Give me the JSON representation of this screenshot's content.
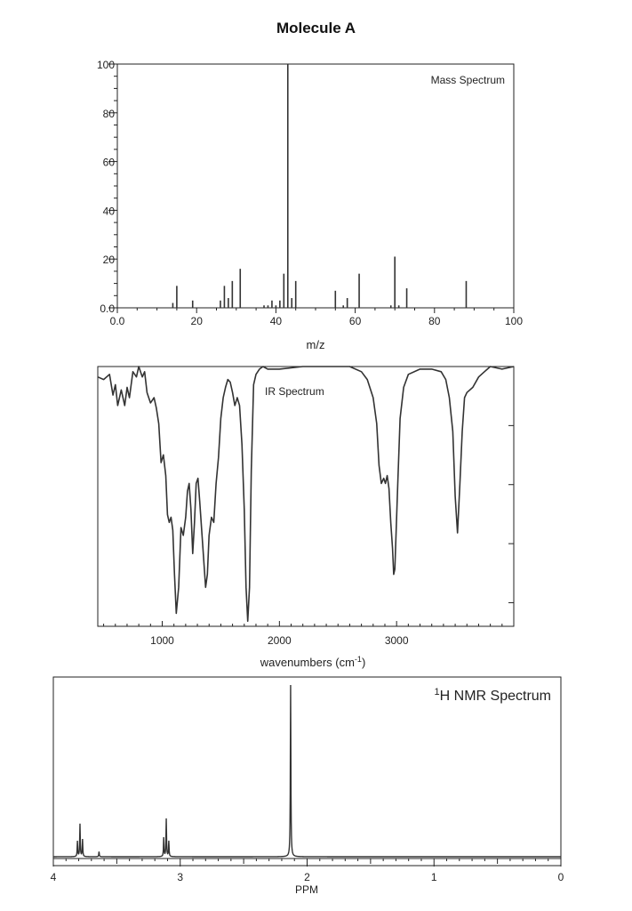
{
  "page": {
    "title": "Molecule A"
  },
  "chart_data": [
    {
      "type": "bar",
      "subtype": "stick-spectrum",
      "inset_label": "Mass Spectrum",
      "xlabel": "m/z",
      "ylabel": "",
      "xlim": [
        0,
        100
      ],
      "ylim": [
        0,
        100
      ],
      "xticks": [
        "0.0",
        "20",
        "40",
        "60",
        "80",
        "100"
      ],
      "yticks": [
        "0.0",
        "20",
        "40",
        "60",
        "80",
        "100"
      ],
      "peaks": [
        {
          "mz": 14,
          "intensity": 2
        },
        {
          "mz": 15,
          "intensity": 9
        },
        {
          "mz": 19,
          "intensity": 3
        },
        {
          "mz": 26,
          "intensity": 3
        },
        {
          "mz": 27,
          "intensity": 9
        },
        {
          "mz": 28,
          "intensity": 4
        },
        {
          "mz": 29,
          "intensity": 11
        },
        {
          "mz": 31,
          "intensity": 16
        },
        {
          "mz": 37,
          "intensity": 1
        },
        {
          "mz": 38,
          "intensity": 1
        },
        {
          "mz": 39,
          "intensity": 3
        },
        {
          "mz": 40,
          "intensity": 1
        },
        {
          "mz": 41,
          "intensity": 3
        },
        {
          "mz": 42,
          "intensity": 14
        },
        {
          "mz": 43,
          "intensity": 100
        },
        {
          "mz": 44,
          "intensity": 4
        },
        {
          "mz": 45,
          "intensity": 11
        },
        {
          "mz": 55,
          "intensity": 7
        },
        {
          "mz": 57,
          "intensity": 1
        },
        {
          "mz": 58,
          "intensity": 4
        },
        {
          "mz": 61,
          "intensity": 14
        },
        {
          "mz": 69,
          "intensity": 1
        },
        {
          "mz": 70,
          "intensity": 21
        },
        {
          "mz": 71,
          "intensity": 1
        },
        {
          "mz": 73,
          "intensity": 8
        },
        {
          "mz": 88,
          "intensity": 11
        }
      ]
    },
    {
      "type": "line",
      "inset_label": "IR Spectrum",
      "xlabel_main": "wavenumbers (cm",
      "xlabel_sup": "-1",
      "xlabel_end": ")",
      "xlim": [
        450,
        4000
      ],
      "ylim": [
        0,
        100
      ],
      "xticks": [
        "1000",
        "2000",
        "3000"
      ],
      "xtick_values": [
        1000,
        2000,
        3000
      ],
      "x": [
        450,
        500,
        550,
        580,
        600,
        620,
        650,
        680,
        700,
        720,
        750,
        780,
        800,
        830,
        850,
        870,
        900,
        930,
        950,
        970,
        990,
        1010,
        1030,
        1045,
        1060,
        1075,
        1090,
        1105,
        1120,
        1140,
        1160,
        1180,
        1200,
        1215,
        1230,
        1245,
        1260,
        1275,
        1290,
        1305,
        1320,
        1340,
        1355,
        1370,
        1385,
        1400,
        1420,
        1440,
        1460,
        1480,
        1500,
        1520,
        1540,
        1560,
        1580,
        1600,
        1620,
        1640,
        1660,
        1680,
        1700,
        1715,
        1730,
        1745,
        1760,
        1780,
        1800,
        1830,
        1860,
        1900,
        2000,
        2200,
        2400,
        2600,
        2700,
        2750,
        2800,
        2830,
        2850,
        2870,
        2890,
        2905,
        2920,
        2935,
        2950,
        2965,
        2975,
        2985,
        2995,
        3010,
        3030,
        3060,
        3100,
        3200,
        3300,
        3380,
        3420,
        3450,
        3480,
        3500,
        3520,
        3540,
        3560,
        3580,
        3600,
        3650,
        3700,
        3750,
        3800,
        3900,
        4000
      ],
      "y": [
        96,
        95,
        97,
        89,
        93,
        85,
        91,
        85,
        92,
        88,
        98,
        96,
        100,
        96,
        98,
        90,
        86,
        88,
        84,
        78,
        63,
        66,
        58,
        43,
        40,
        42,
        37,
        20,
        5,
        15,
        38,
        35,
        42,
        52,
        55,
        45,
        28,
        40,
        55,
        57,
        48,
        35,
        25,
        15,
        20,
        35,
        42,
        40,
        55,
        65,
        80,
        88,
        92,
        95,
        94,
        90,
        85,
        88,
        85,
        70,
        45,
        15,
        2,
        15,
        60,
        93,
        97,
        99,
        100,
        99,
        99,
        100,
        100,
        100,
        98,
        95,
        88,
        78,
        62,
        55,
        57,
        55,
        58,
        53,
        40,
        30,
        20,
        22,
        35,
        55,
        80,
        92,
        97,
        99,
        99,
        98,
        95,
        88,
        75,
        50,
        36,
        55,
        75,
        88,
        90,
        92,
        96,
        98,
        100,
        99,
        100
      ]
    },
    {
      "type": "line",
      "inset_label_sup": "1",
      "inset_label_main": "H NMR Spectrum",
      "xlabel": "PPM",
      "xlim": [
        4,
        0
      ],
      "xticks": [
        "4",
        "3",
        "2",
        "1",
        "0"
      ],
      "xtick_values": [
        4,
        3,
        2,
        1,
        0
      ],
      "peaks": [
        {
          "ppm": 3.81,
          "height": 9
        },
        {
          "ppm": 3.79,
          "height": 19
        },
        {
          "ppm": 3.77,
          "height": 10
        },
        {
          "ppm": 3.64,
          "height": 3
        },
        {
          "ppm": 3.13,
          "height": 11
        },
        {
          "ppm": 3.11,
          "height": 22
        },
        {
          "ppm": 3.09,
          "height": 9
        },
        {
          "ppm": 2.13,
          "height": 100
        }
      ]
    }
  ]
}
